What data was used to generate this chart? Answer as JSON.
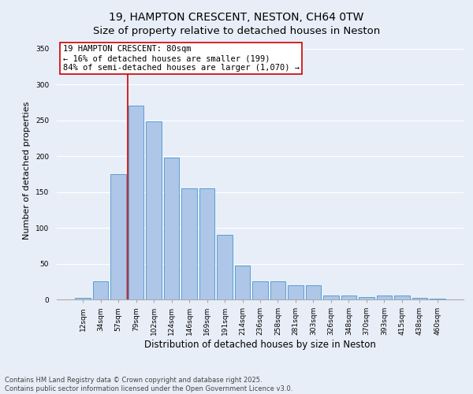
{
  "title": "19, HAMPTON CRESCENT, NESTON, CH64 0TW",
  "subtitle": "Size of property relative to detached houses in Neston",
  "xlabel": "Distribution of detached houses by size in Neston",
  "ylabel": "Number of detached properties",
  "categories": [
    "12sqm",
    "34sqm",
    "57sqm",
    "79sqm",
    "102sqm",
    "124sqm",
    "146sqm",
    "169sqm",
    "191sqm",
    "214sqm",
    "236sqm",
    "258sqm",
    "281sqm",
    "303sqm",
    "326sqm",
    "348sqm",
    "370sqm",
    "393sqm",
    "415sqm",
    "438sqm",
    "460sqm"
  ],
  "bar_heights": [
    2,
    25,
    175,
    270,
    248,
    198,
    155,
    155,
    90,
    47,
    25,
    25,
    20,
    20,
    6,
    6,
    3,
    5,
    5,
    2,
    1
  ],
  "bar_color": "#aec6e8",
  "bar_edgecolor": "#5a9fd4",
  "bg_color": "#e8eef8",
  "grid_color": "#ffffff",
  "annotation_box_text": "19 HAMPTON CRESCENT: 80sqm\n← 16% of detached houses are smaller (199)\n84% of semi-detached houses are larger (1,070) →",
  "vline_color": "#cc0000",
  "vline_x_index": 2.55,
  "ylim": [
    0,
    360
  ],
  "yticks": [
    0,
    50,
    100,
    150,
    200,
    250,
    300,
    350
  ],
  "footnote": "Contains HM Land Registry data © Crown copyright and database right 2025.\nContains public sector information licensed under the Open Government Licence v3.0.",
  "title_fontsize": 10,
  "xlabel_fontsize": 8.5,
  "ylabel_fontsize": 8,
  "tick_fontsize": 6.5,
  "annotation_fontsize": 7.5,
  "footnote_fontsize": 6
}
